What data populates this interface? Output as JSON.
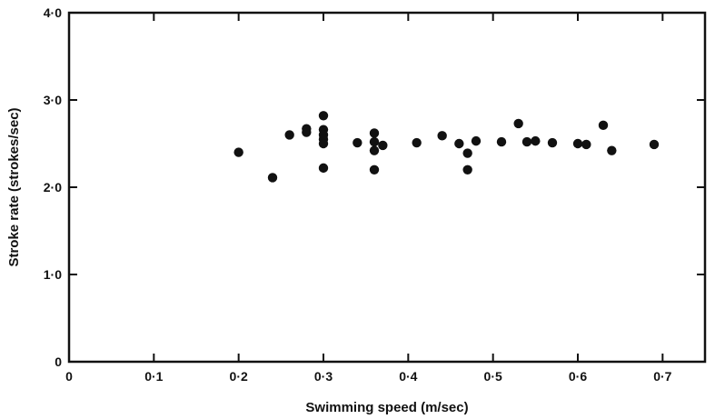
{
  "chart_data": {
    "type": "scatter",
    "title": "",
    "xlabel": "Swimming speed (m/sec)",
    "ylabel": "Stroke rate (strokes/sec)",
    "xlim": [
      0,
      0.75
    ],
    "ylim": [
      0,
      4.0
    ],
    "xticks": [
      0,
      0.1,
      0.2,
      0.3,
      0.4,
      0.5,
      0.6,
      0.7
    ],
    "xtick_labels": [
      "0",
      "0·1",
      "0·2",
      "0·3",
      "0·4",
      "0·5",
      "0·6",
      "0·7"
    ],
    "yticks": [
      0,
      1.0,
      2.0,
      3.0,
      4.0
    ],
    "ytick_labels": [
      "0",
      "1·0",
      "2·0",
      "3·0",
      "4·0"
    ],
    "grid": false,
    "legend": "none",
    "point_color": "#111111",
    "points": [
      {
        "x": 0.2,
        "y": 2.4
      },
      {
        "x": 0.24,
        "y": 2.11
      },
      {
        "x": 0.26,
        "y": 2.6
      },
      {
        "x": 0.28,
        "y": 2.63
      },
      {
        "x": 0.28,
        "y": 2.67
      },
      {
        "x": 0.3,
        "y": 2.82
      },
      {
        "x": 0.3,
        "y": 2.66
      },
      {
        "x": 0.3,
        "y": 2.6
      },
      {
        "x": 0.3,
        "y": 2.55
      },
      {
        "x": 0.3,
        "y": 2.5
      },
      {
        "x": 0.3,
        "y": 2.22
      },
      {
        "x": 0.34,
        "y": 2.51
      },
      {
        "x": 0.36,
        "y": 2.62
      },
      {
        "x": 0.36,
        "y": 2.52
      },
      {
        "x": 0.36,
        "y": 2.42
      },
      {
        "x": 0.36,
        "y": 2.2
      },
      {
        "x": 0.37,
        "y": 2.48
      },
      {
        "x": 0.41,
        "y": 2.51
      },
      {
        "x": 0.44,
        "y": 2.59
      },
      {
        "x": 0.46,
        "y": 2.5
      },
      {
        "x": 0.47,
        "y": 2.39
      },
      {
        "x": 0.47,
        "y": 2.2
      },
      {
        "x": 0.48,
        "y": 2.53
      },
      {
        "x": 0.51,
        "y": 2.52
      },
      {
        "x": 0.53,
        "y": 2.73
      },
      {
        "x": 0.54,
        "y": 2.52
      },
      {
        "x": 0.55,
        "y": 2.53
      },
      {
        "x": 0.57,
        "y": 2.51
      },
      {
        "x": 0.6,
        "y": 2.5
      },
      {
        "x": 0.61,
        "y": 2.49
      },
      {
        "x": 0.63,
        "y": 2.71
      },
      {
        "x": 0.64,
        "y": 2.42
      },
      {
        "x": 0.69,
        "y": 2.49
      }
    ]
  }
}
